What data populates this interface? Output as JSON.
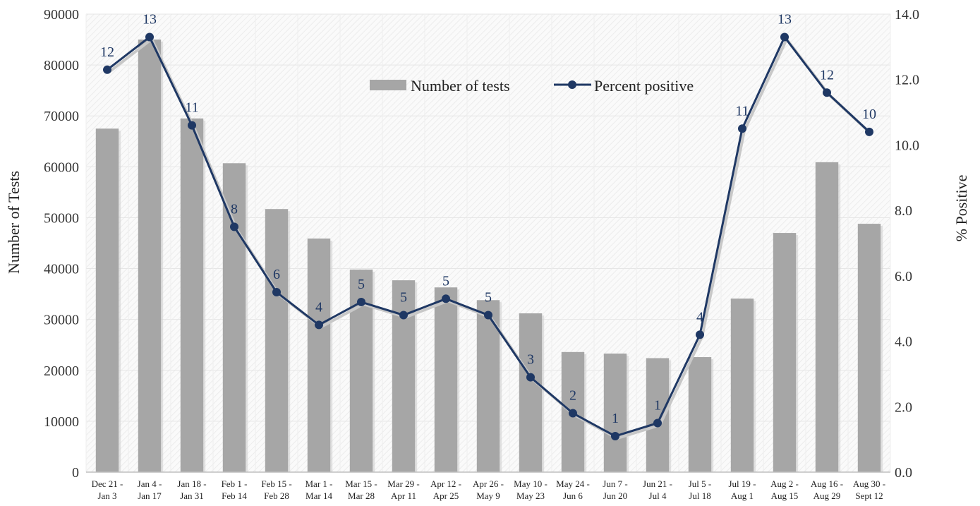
{
  "chart_data": {
    "type": "bar+line",
    "categories": [
      [
        "Dec 21 -",
        "Jan 3"
      ],
      [
        "Jan 4 -",
        "Jan 17"
      ],
      [
        "Jan 18 -",
        "Jan 31"
      ],
      [
        "Feb 1 -",
        "Feb 14"
      ],
      [
        "Feb 15 -",
        "Feb 28"
      ],
      [
        "Mar 1 -",
        "Mar 14"
      ],
      [
        "Mar 15 -",
        "Mar 28"
      ],
      [
        "Mar 29 -",
        "Apr 11"
      ],
      [
        "Apr 12 -",
        "Apr 25"
      ],
      [
        "Apr 26 -",
        "May 9"
      ],
      [
        "May 10 -",
        "May 23"
      ],
      [
        "May 24 -",
        "Jun 6"
      ],
      [
        "Jun 7 -",
        "Jun 20"
      ],
      [
        "Jun 21 -",
        "Jul 4"
      ],
      [
        "Jul 5 -",
        "Jul 18"
      ],
      [
        "Jul 19 -",
        "Aug 1"
      ],
      [
        "Aug 2 -",
        "Aug 15"
      ],
      [
        "Aug 16 -",
        "Aug 29"
      ],
      [
        "Aug 30 -",
        "Sept 12"
      ]
    ],
    "series": [
      {
        "name": "Number of tests",
        "type": "bar",
        "axis": "left",
        "color": "#a6a6a6",
        "values": [
          67500,
          85000,
          69500,
          60700,
          51700,
          45900,
          39800,
          37700,
          36300,
          33800,
          31200,
          23600,
          23300,
          22400,
          22600,
          34100,
          47000,
          60900,
          48800
        ]
      },
      {
        "name": "Percent positive",
        "type": "line",
        "axis": "right",
        "color": "#1f3864",
        "values": [
          12.3,
          13.3,
          10.6,
          7.5,
          5.5,
          4.5,
          5.2,
          4.8,
          5.3,
          4.8,
          2.9,
          1.8,
          1.1,
          1.5,
          4.2,
          10.5,
          13.3,
          11.6,
          10.4
        ],
        "labels": [
          "12",
          "13",
          "11",
          "8",
          "6",
          "4",
          "5",
          "5",
          "5",
          "5",
          "3",
          "2",
          "1",
          "1",
          "4",
          "11",
          "13",
          "12",
          "10"
        ]
      }
    ],
    "y_left": {
      "label": "Number of Tests",
      "range": [
        0,
        90000
      ],
      "ticks": [
        "0",
        "10000",
        "20000",
        "30000",
        "40000",
        "50000",
        "60000",
        "70000",
        "80000",
        "90000"
      ]
    },
    "y_right": {
      "label": "% Positive",
      "range": [
        0,
        14
      ],
      "ticks": [
        "0.0",
        "2.0",
        "4.0",
        "6.0",
        "8.0",
        "10.0",
        "12.0",
        "14.0"
      ]
    },
    "legend": {
      "position": "top-center"
    },
    "grid": true
  }
}
